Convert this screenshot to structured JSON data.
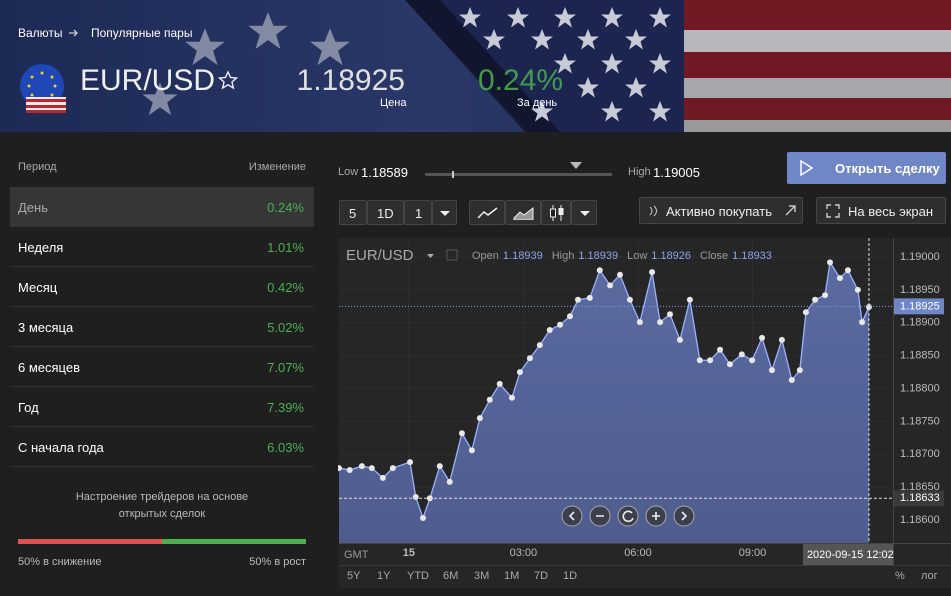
{
  "header": {
    "breadcrumb": [
      "Валюты",
      "Популярные пары"
    ],
    "symbol": "EUR/USD",
    "price": 1.18925,
    "price_label": "Цена",
    "change": "0.24%",
    "change_label": "За день"
  },
  "periods": {
    "header": [
      "Период",
      "Изменение"
    ],
    "rows": [
      {
        "name": "День",
        "change": "0.24%"
      },
      {
        "name": "Неделя",
        "change": "1.01%"
      },
      {
        "name": "Месяц",
        "change": "0.42%"
      },
      {
        "name": "3 месяца",
        "change": "5.02%"
      },
      {
        "name": "6 месяцев",
        "change": "7.07%"
      },
      {
        "name": "Год",
        "change": "7.39%"
      },
      {
        "name": "С начала года",
        "change": "6.03%"
      }
    ]
  },
  "sentiment": {
    "title": "Настроение трейдеров на основе открытых сделок",
    "down": {
      "value": 50,
      "label": "50% в снижение"
    },
    "up": {
      "value": 50,
      "label": "50% в рост"
    }
  },
  "range": {
    "low_label": "Low",
    "low": 1.18589,
    "high_label": "High",
    "high": 1.19005
  },
  "buttons": {
    "open": "Открыть сделку",
    "interval": [
      "5",
      "1D",
      "1"
    ],
    "buy": "Активно покупать",
    "fullscreen": "На весь экран"
  },
  "chart": {
    "symbol": "EUR/USD",
    "ohlc": [
      {
        "label": "Open",
        "value": "1.18939"
      },
      {
        "label": "High",
        "value": "1.18939"
      },
      {
        "label": "Low",
        "value": "1.18926"
      },
      {
        "label": "Close",
        "value": "1.18933"
      }
    ],
    "x": [
      -1.83,
      -1.55,
      -1.23,
      -0.97,
      -0.68,
      -0.42,
      0.03,
      0.18,
      0.37,
      0.55,
      0.81,
      1.07,
      1.39,
      1.65,
      1.86,
      2.12,
      2.38,
      2.7,
      2.91,
      3.17,
      3.43,
      3.69,
      3.96,
      4.22,
      4.43,
      4.74,
      5.0,
      5.27,
      5.53,
      5.79,
      6.05,
      6.37,
      6.58,
      6.84,
      7.1,
      7.36,
      7.62,
      7.89,
      8.15,
      8.41,
      8.72,
      8.99,
      9.25,
      9.51,
      9.77,
      10.03,
      10.24,
      10.4,
      10.64,
      10.9,
      11.03,
      11.29,
      11.5,
      11.76,
      11.87,
      12.05
    ],
    "values": [
      1.18679,
      1.18676,
      1.18682,
      1.18679,
      1.18664,
      1.18679,
      1.18688,
      1.18635,
      1.18603,
      1.18633,
      1.18682,
      1.18658,
      1.18732,
      1.18706,
      1.18755,
      1.18783,
      1.18807,
      1.18786,
      1.18825,
      1.18846,
      1.18866,
      1.18889,
      1.18897,
      1.1891,
      1.18935,
      1.18938,
      1.1898,
      1.18957,
      1.18973,
      1.18935,
      1.18901,
      1.18977,
      1.18901,
      1.18913,
      1.18874,
      1.18935,
      1.18843,
      1.18843,
      1.18859,
      1.18837,
      1.18852,
      1.18843,
      1.18877,
      1.18828,
      1.18874,
      1.18813,
      1.18828,
      1.18916,
      1.18935,
      1.18942,
      1.18992,
      1.18968,
      1.1898,
      1.1895,
      1.18901,
      1.18924
    ],
    "xlim": [
      -1.83,
      12.68
    ],
    "ylim": [
      1.18565,
      1.19029
    ],
    "yticks": [
      {
        "value": 1.19,
        "label": "1.19000"
      },
      {
        "value": 1.1895,
        "label": "1.18950"
      },
      {
        "value": 1.189,
        "label": "1.18900"
      },
      {
        "value": 1.1885,
        "label": "1.18850"
      },
      {
        "value": 1.188,
        "label": "1.18800"
      },
      {
        "value": 1.1875,
        "label": "1.18750"
      },
      {
        "value": 1.187,
        "label": "1.18700"
      },
      {
        "value": 1.1865,
        "label": "1.18650"
      },
      {
        "value": 1.186,
        "label": "1.18600"
      }
    ],
    "xticks": [
      {
        "value": 0,
        "label": "15"
      },
      {
        "value": 3,
        "label": "03:00"
      },
      {
        "value": 6,
        "label": "06:00"
      },
      {
        "value": 9,
        "label": "09:00"
      }
    ],
    "last_price": 1.18925,
    "low_line": 1.18633,
    "cursor": {
      "value": 12.05,
      "label": "2020-09-15 12:02"
    },
    "timezone": "GMT",
    "ranges": [
      "5Y",
      "1Y",
      "YTD",
      "6M",
      "3M",
      "1M",
      "7D",
      "1D"
    ],
    "scale_options": [
      "%",
      "лог"
    ]
  }
}
